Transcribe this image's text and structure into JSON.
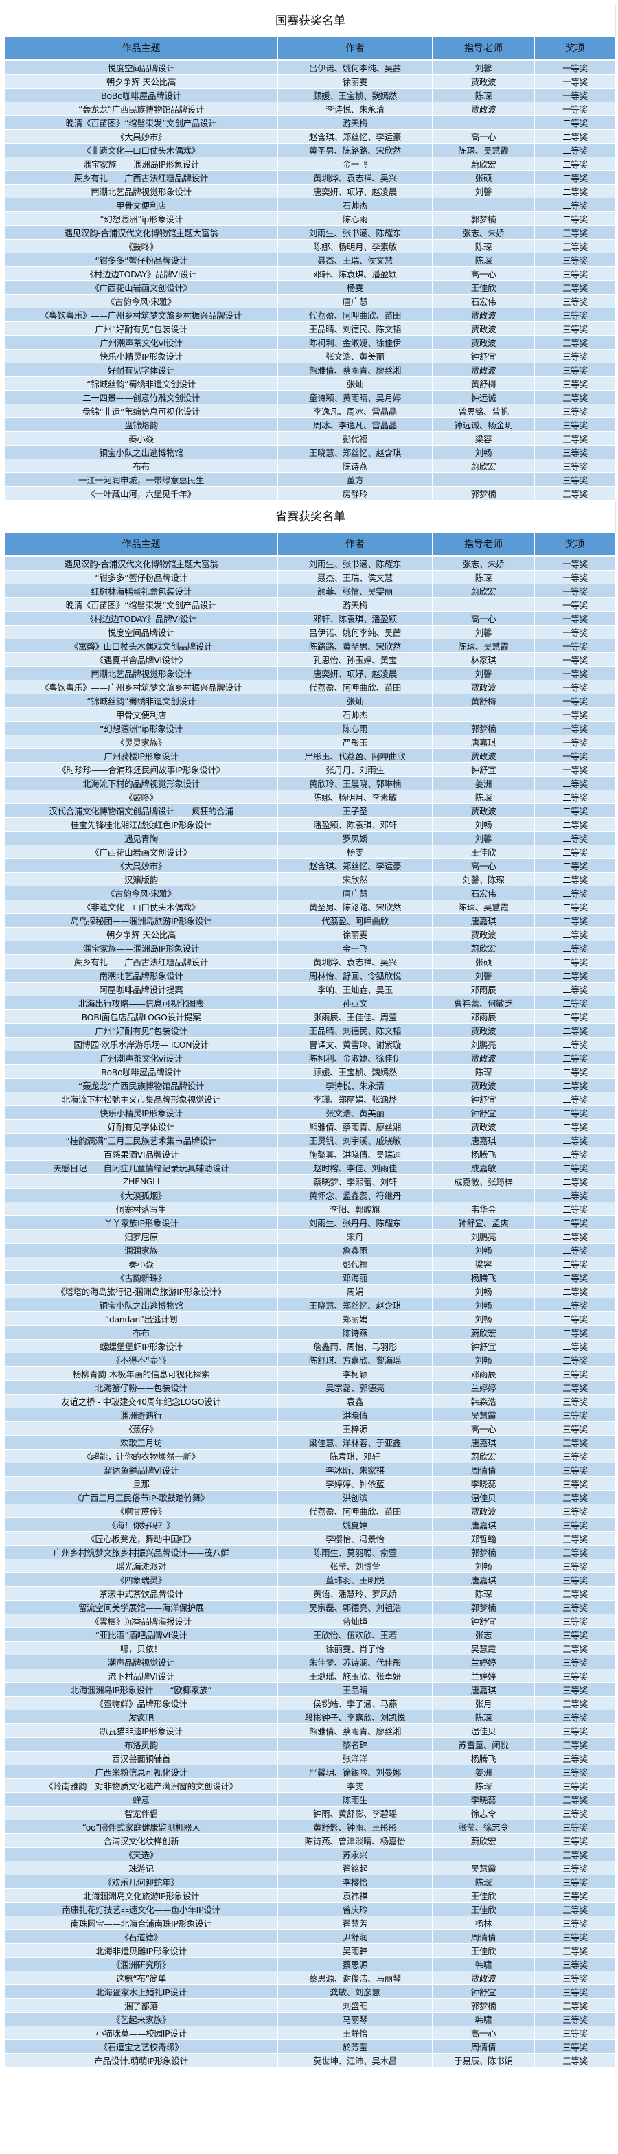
{
  "colors": {
    "header": "#5b9bd5",
    "row_dark": "#bdd7ee",
    "row_light": "#ddebf7"
  },
  "columns": [
    "作品主题",
    "作者",
    "指导老师",
    "奖项"
  ],
  "sections": [
    {
      "title": "国赛获奖名单",
      "rows": [
        [
          "悦度空间品牌设计",
          "吕伊诺、姚何李纯、吴茜",
          "刘馨",
          "一等奖"
        ],
        [
          "朝夕争辉 天公比高",
          "徐丽雯",
          "贾政波",
          "一等奖"
        ],
        [
          "BoBo咖啡屋品牌设计",
          "顾媛、王宝桢、魏嫣然",
          "陈琛",
          "一等奖"
        ],
        [
          "“轰龙龙”广西民族博物馆品牌设计",
          "李诗悦、朱永清",
          "贾政波",
          "一等奖"
        ],
        [
          "晚清《百苗图》“绾髻束发”文创产品设计",
          "游天梅",
          "",
          "二等奖"
        ],
        [
          "《大禺妙市》",
          "赵含琪、郑丝忆、李运豪",
          "高一心",
          "二等奖"
        ],
        [
          "《非遗文化—山口仗头木偶戏》",
          "黄圣男、陈路路、宋欣然",
          "陈琛、吴慧霞",
          "二等奖"
        ],
        [
          "涠宝家族——涠洲岛IP形象设计",
          "金一飞",
          "蔚欣宏",
          "二等奖"
        ],
        [
          "蔗乡有礼——广西古法红糖品牌设计",
          "黄圳烨、袁志祥、吴兴",
          "张硕",
          "二等奖"
        ],
        [
          "南潮北艺品牌视觉形象设计",
          "唐奕妍、项妤、赵凌晨",
          "刘馨",
          "二等奖"
        ],
        [
          "甲骨文便利店",
          "石帅杰",
          "",
          "二等奖"
        ],
        [
          "“幻想涠洲”ip形象设计",
          "陈心雨",
          "郭梦楠",
          "二等奖"
        ],
        [
          "遇见汉韵-合浦汉代文化博物馆主题大富翁",
          "刘雨生、张书涵、陈耀东",
          "张志、朱娇",
          "三等奖"
        ],
        [
          "《鼓咚》",
          "陈娜、杨明月、李素敏",
          "陈琛",
          "三等奖"
        ],
        [
          "“钳多多”蟹仔粉品牌设计",
          "聂杰、王瑞、侯文慧",
          "陈琛",
          "三等奖"
        ],
        [
          "《村边边TODAY》品牌VI设计",
          "邓轩、陈袁琪、潘盈颖",
          "高一心",
          "三等奖"
        ],
        [
          "《广西花山岩画文创设计》",
          "杨雯",
          "王佳欣",
          "三等奖"
        ],
        [
          "《古韵今风·宋雅》",
          "唐广慧",
          "石宏伟",
          "三等奖"
        ],
        [
          "《粤饮粤乐》——广州乡村筑梦文旅乡村振兴品牌设计",
          "代荔盈、阿呷曲欣、苗田",
          "贾政波",
          "三等奖"
        ],
        [
          "广州“好耐有见”包装设计",
          "王品晴、刘德民、陈文韬",
          "贾政波",
          "三等奖"
        ],
        [
          "广州潮声茶文化vi设计",
          "陈柯利、金淑婕、徐佳伊",
          "贾政波",
          "三等奖"
        ],
        [
          "快乐小精灵IP形象设计",
          "张文浩、黄美丽",
          "钟舒宜",
          "三等奖"
        ],
        [
          "好耐有见字体设计",
          "熊雅倩、蔡雨青、廖丝湘",
          "贾政波",
          "三等奖"
        ],
        [
          "“锦城丝韵”蜀绣非遗文创设计",
          "张灿",
          "黄舒梅",
          "三等奖"
        ],
        [
          "二十四景——创意竹雕文创设计",
          "童诗颖、黄雨晴、吴月婷",
          "钟远诚",
          "三等奖"
        ],
        [
          "盘锦“非遗”苇编信息可视化设计",
          "李逸凡、周冰、雷晶晶",
          "曾思铭、曾帆",
          "三等奖"
        ],
        [
          "盘锦烙韵",
          "周冰、李逸凡、雷晶晶",
          "钟远诚、杨金玥",
          "三等奖"
        ],
        [
          "秦小焱",
          "彭代福",
          "梁容",
          "三等奖"
        ],
        [
          "铜宝小队之出逃博物馆",
          "王晓慧、郑丝忆、赵含琪",
          "刘畅",
          "三等奖"
        ],
        [
          "布布",
          "陈诗燕",
          "蔚欣宏",
          "三等奖"
        ],
        [
          "一江一河润申城，一带绿意惠民生",
          "董方",
          "",
          "三等奖"
        ],
        [
          "《一叶藏山河，六堡见千年》",
          "房静玲",
          "郭梦楠",
          "三等奖"
        ]
      ]
    },
    {
      "title": "省赛获奖名单",
      "rows": [
        [
          "遇见汉韵-合浦汉代文化博物馆主题大富翁",
          "刘雨生、张书涵、陈耀东",
          "张志、朱娇",
          "一等奖"
        ],
        [
          "“钳多多”蟹仔粉品牌设计",
          "聂杰、王瑞、侯文慧",
          "陈琛",
          "一等奖"
        ],
        [
          "红树林海鸭蛋礼盒包装设计",
          "颜菲、张情、吴雯丽",
          "蔚欣宏",
          "一等奖"
        ],
        [
          "晚清《百苗图》“绾髻束发”文创产品设计",
          "游天梅",
          "",
          "一等奖"
        ],
        [
          "《村边边TODAY》品牌VI设计",
          "邓轩、陈袁琪、潘盈颖",
          "高一心",
          "一等奖"
        ],
        [
          "悦度空间品牌设计",
          "吕伊诺、姚何李纯、吴茜",
          "刘馨",
          "一等奖"
        ],
        [
          "《寓磬》山口杖头木偶戏文创品牌设计",
          "陈路路、黄圣男、宋欣然",
          "陈琛、吴慧霞",
          "一等奖"
        ],
        [
          "《遇夏书舍品牌VI设计》",
          "孔思怡、孙玉婷、黄宝",
          "林家琪",
          "一等奖"
        ],
        [
          "南潮北艺品牌视觉形象设计",
          "唐奕妍、项妤、赵凌晨",
          "刘馨",
          "一等奖"
        ],
        [
          "《粤饮粤乐》——广州乡村筑梦文旅乡村振兴品牌设计",
          "代荔盈、阿呷曲欣、苗田",
          "贾政波",
          "一等奖"
        ],
        [
          "“锦城丝韵”蜀绣非遗文创设计",
          "张灿",
          "黄舒梅",
          "一等奖"
        ],
        [
          "甲骨文便利店",
          "石帅杰",
          "",
          "一等奖"
        ],
        [
          "“幻想涠洲”ip形象设计",
          "陈心雨",
          "郭梦楠",
          "一等奖"
        ],
        [
          "《灵灵家族》",
          "严彤玉",
          "唐嘉琪",
          "一等奖"
        ],
        [
          "广州骑楼IP形象设计",
          "严彤玉、代荔盈、阿呷曲欣",
          "贾政波",
          "一等奖"
        ],
        [
          "《时珍珍——合浦珠还民间故事IP形象设计》",
          "张丹丹、刘雨生",
          "钟舒宜",
          "一等奖"
        ],
        [
          "北海流下村的品牌视觉形象设计",
          "黄欣玲、王晨晓、郭琳楠",
          "姜洲",
          "二等奖"
        ],
        [
          "《鼓咚》",
          "陈娜、杨明月、李素敏",
          "陈琛",
          "二等奖"
        ],
        [
          "汉代合浦文化博物馆文创品牌设计——疯狂的合浦",
          "王子圣",
          "贾政波",
          "二等奖"
        ],
        [
          "桂宝先锋桂北湘江战役红色IP形象设计",
          "潘盈颖、陈袁琪、邓轩",
          "刘畅",
          "二等奖"
        ],
        [
          "遇见青陶",
          "罗凤娇",
          "刘馨",
          "二等奖"
        ],
        [
          "《广西花山岩画文创设计》",
          "杨雯",
          "王佳欣",
          "二等奖"
        ],
        [
          "《大禺妙市》",
          "赵含琪、郑丝忆、李运豪",
          "高一心",
          "二等奖"
        ],
        [
          "汉濂版韵",
          "宋欣然",
          "刘馨、陈琛",
          "二等奖"
        ],
        [
          "《古韵今风·宋雅》",
          "唐广慧",
          "石宏伟",
          "二等奖"
        ],
        [
          "《非遗文化—山口仗头木偶戏》",
          "黄圣男、陈路路、宋欣然",
          "陈琛、吴慧霞",
          "二等奖"
        ],
        [
          "岛岛探秘团——涠洲岛旅游IP形象设计",
          "代荔盈、阿呷曲欣",
          "唐嘉琪",
          "二等奖"
        ],
        [
          "朝夕争辉 天公比高",
          "徐丽雯",
          "贾政波",
          "二等奖"
        ],
        [
          "涠宝家族——涠洲岛IP形象设计",
          "金一飞",
          "蔚欣宏",
          "二等奖"
        ],
        [
          "蔗乡有礼——广西古法红糖品牌设计",
          "黄圳烨、袁志祥、吴兴",
          "张硕",
          "二等奖"
        ],
        [
          "南潮北艺品牌形象设计",
          "周林怡、舒画、令狐欣悦",
          "刘馨",
          "二等奖"
        ],
        [
          "阿屋咖啡品牌设计提案",
          "李响、王灿垚、吴玉",
          "邓雨辰",
          "二等奖"
        ],
        [
          "北海出行攻略——信息可视化图表",
          "孙亚文",
          "曹祎蕾、何敏芝",
          "二等奖"
        ],
        [
          "BOBI面包店品牌LOGO设计提案",
          "张雨辰、王佳佳、周莹",
          "邓雨辰",
          "二等奖"
        ],
        [
          "广州“好耐有见”包装设计",
          "王品晴、刘德民、陈文韬",
          "贾政波",
          "二等奖"
        ],
        [
          "园博园·欢乐水岸游乐场— ICON设计",
          "曹译文、黄雪玲、谢紫璇",
          "刘鹏亮",
          "二等奖"
        ],
        [
          "广州潮声茶文化vi设计",
          "陈柯利、金淑婕、徐佳伊",
          "贾政波",
          "二等奖"
        ],
        [
          "BoBo咖啡屋品牌设计",
          "顾媛、王宝桢、魏嫣然",
          "陈琛",
          "二等奖"
        ],
        [
          "“轰龙龙”广西民族博物馆品牌设计",
          "李诗悦、朱永清",
          "贾政波",
          "二等奖"
        ],
        [
          "北海流下村松弛主义市集品牌形象视觉设计",
          "李珊、郑丽娟、张涵烨",
          "钟舒宜",
          "二等奖"
        ],
        [
          "快乐小精灵IP形象设计",
          "张文浩、黄美丽",
          "钟舒宜",
          "二等奖"
        ],
        [
          "好耐有见字体设计",
          "熊雅倩、蔡雨青、廖丝湘",
          "贾政波",
          "二等奖"
        ],
        [
          "“桂韵满满”三月三民族艺术集市品牌设计",
          "王灵钒、刘宇溪、戚晓敏",
          "唐嘉琪",
          "二等奖"
        ],
        [
          "百感果酒VI品牌设计",
          "施懿真、洪晓倩、吴瑞迪",
          "杨腾飞",
          "二等奖"
        ],
        [
          "天感日记——自闭症儿童情绪记录玩具辅助设计",
          "赵时榕、李佳、刘雨佳",
          "成嘉敏",
          "二等奖"
        ],
        [
          "ZHENGLI",
          "蔡晓梦、李熙蕾、刘轩",
          "成嘉敏、张筠梓",
          "二等奖"
        ],
        [
          "《大漠孤烟》",
          "黄怀念、孟鑫蕊、符继丹",
          "",
          "二等奖"
        ],
        [
          "侗寨村落写生",
          "李阳、郭峻旗",
          "韦华金",
          "二等奖"
        ],
        [
          "丫丫家族IP形象设计",
          "刘雨生、张丹丹、陈耀东",
          "钟舒宜、孟爽",
          "二等奖"
        ],
        [
          "汨罗屈原",
          "宋丹",
          "刘鹏亮",
          "二等奖"
        ],
        [
          "涠涠家族",
          "詹鑫雨",
          "刘畅",
          "二等奖"
        ],
        [
          "秦小焱",
          "彭代福",
          "梁容",
          "二等奖"
        ],
        [
          "《古韵新珠》",
          "邓海丽",
          "杨腾飞",
          "二等奖"
        ],
        [
          "《塔塔的海岛旅行记-涠洲岛旅游IP形象设计》",
          "周娟",
          "刘畅",
          "二等奖"
        ],
        [
          "铜宝小队之出逃博物馆",
          "王晓慧、郑丝忆、赵含琪",
          "刘畅",
          "二等奖"
        ],
        [
          "“dandan”出逃计划",
          "郑丽娟",
          "刘畅",
          "二等奖"
        ],
        [
          "布布",
          "陈诗燕",
          "蔚欣宏",
          "二等奖"
        ],
        [
          "螺螺堡堡虾IP形象设计",
          "詹鑫雨、周怡、马羽彤",
          "钟舒宜",
          "二等奖"
        ],
        [
          "《不得不“壶”》",
          "陈舒琪、方嘉欣、黎海瑶",
          "刘畅",
          "二等奖"
        ],
        [
          "杨柳青韵-木板年画的信息可视化探索",
          "李柯颖",
          "邓雨辰",
          "三等奖"
        ],
        [
          "北海蟹仔粉——包装设计",
          "吴宗磊、郭德亮",
          "兰婷婷",
          "三等奖"
        ],
        [
          "友谊之桥 - 中玻建交40周年纪念LOGO设计",
          "袁鑫",
          "韩森浩",
          "三等奖"
        ],
        [
          "涠洲奇遇行",
          "洪晓倩",
          "吴慧霞",
          "三等奖"
        ],
        [
          "《蕉仔》",
          "王梓源",
          "高一心",
          "三等奖"
        ],
        [
          "欢歌三月坊",
          "梁佳慧、洋林蓉、于亚鑫",
          "唐嘉琪",
          "三等奖"
        ],
        [
          "《超能，让你的衣物焕然一新》",
          "陈袁琪、邓轩",
          "蔚欣宏",
          "三等奖"
        ],
        [
          "溜达鱼鲜品牌VI设计",
          "李冰昕、朱家祺",
          "周倩倩",
          "三等奖"
        ],
        [
          "旦那",
          "李婷婷、钟依蓝",
          "李晓蕊",
          "三等奖"
        ],
        [
          "《广西三月三民俗节IP-歌鼓踏竹舞》",
          "洪创滨",
          "温佳贝",
          "三等奖"
        ],
        [
          "《啊甘蔗传》",
          "代荔盈、阿呷曲欣、苗田",
          "贾政波",
          "三等奖"
        ],
        [
          "《海！你好吗？》",
          "姚夏婷",
          "唐嘉琪",
          "三等奖"
        ],
        [
          "《匠心板凳龙，舞动中国红》",
          "李樱怡、冯景怡",
          "郑哲翰",
          "三等奖"
        ],
        [
          "广州乡村筑梦文旅乡村振兴品牌设计——茂八鲜",
          "陈雨生、莫羽聪、俞萱",
          "郭梦楠",
          "三等奖"
        ],
        [
          "瑶光海滩派对",
          "张莹、刘博萱",
          "刘畅",
          "三等奖"
        ],
        [
          "《四象瑞灵》",
          "董玮羽、王明悦",
          "唐嘉琪",
          "三等奖"
        ],
        [
          "茶漾中式茶饮品牌设计",
          "黄语、潘慧玲、罗凤娇",
          "陈琛",
          "三等奖"
        ],
        [
          "留流空间美学展馆——海洋保护展",
          "吴宗磊、郭德亮、刘祖浩",
          "郭梦楠",
          "三等奖"
        ],
        [
          "《雲檀》沉香品牌海报设计",
          "蒋灿瑄",
          "钟舒宜",
          "三等奖"
        ],
        [
          "“亚比酒”酒吧品牌VI设计",
          "王欣怡、伍欢欣、王若",
          "张志",
          "三等奖"
        ],
        [
          "嘿，贝侬！",
          "徐丽雯、肖子怡",
          "吴慧霞",
          "三等奖"
        ],
        [
          "潮声品牌视觉设计",
          "朱佳梦、苏诗涵、代佳彤",
          "兰婷婷",
          "三等奖"
        ],
        [
          "流下村品牌VI设计",
          "王璐瑶、施玉欣、张卓妍",
          "兰婷婷",
          "三等奖"
        ],
        [
          "北海涠洲岛IP形象设计——“欧椰家族”",
          "王品晴",
          "唐嘉琪",
          "三等奖"
        ],
        [
          "《疍嗨鲜》品牌形象设计",
          "侯锐皓、李子涵、马燕",
          "张月",
          "三等奖"
        ],
        [
          "发疯吧",
          "段彬钟子、李嘉欣、刘凯悦",
          "陈琛",
          "三等奖"
        ],
        [
          "趴瓦猫非遗IP形象设计",
          "熊雅倩、蔡雨青、廖丝湘",
          "温佳贝",
          "三等奖"
        ],
        [
          "布洛灵韵",
          "黎名玮",
          "苏雪童、闭悦",
          "三等奖"
        ],
        [
          "西汉兽面铜辅首",
          "张洋洋",
          "杨腾飞",
          "三等奖"
        ],
        [
          "广西米粉信息可视化设计",
          "严馨玥、徐银吟、刘曼娜",
          "姜洲",
          "三等奖"
        ],
        [
          "《岭南雅韵—对非物质文化遗产满洲窗的文创设计》",
          "李雯",
          "陈琛",
          "三等奖"
        ],
        [
          "蝉意",
          "陈雨生",
          "李晓蕊",
          "三等奖"
        ],
        [
          "智宠伴侣",
          "钟雨、黄舒影、李碧瑶",
          "徐志令",
          "三等奖"
        ],
        [
          "“oo”陪伴式家庭健康监测机器人",
          "黄舒影、钟雨、王彤彤",
          "张莹、徐志令",
          "三等奖"
        ],
        [
          "合浦汉文化纹样创新",
          "陈诗燕、曾津淡晴、杨嘉怡",
          "蔚欣宏",
          "三等奖"
        ],
        [
          "《天选》",
          "苏永兴",
          "",
          "三等奖"
        ],
        [
          "珠游记",
          "翟铭起",
          "吴慧霞",
          "三等奖"
        ],
        [
          "《欢乐几何迎蛇年》",
          "李樱怡",
          "陈琛",
          "三等奖"
        ],
        [
          "北海涠洲岛文化旅游IP形象设计",
          "袁祎祺",
          "王佳欣",
          "三等奖"
        ],
        [
          "南康扎花灯技艺非遗文化——鱼小年IP设计",
          "曾庆玲",
          "王佳欣",
          "三等奖"
        ],
        [
          "南珠圆宝——北海合浦南珠IP形象设计",
          "翟慧芳",
          "杨林",
          "三等奖"
        ],
        [
          "《石道德》",
          "尹舒润",
          "周倩倩",
          "三等奖"
        ],
        [
          "北海非遗贝雕IP形象设计",
          "吴雨韩",
          "王佳欣",
          "三等奖"
        ],
        [
          "《涠洲研究所》",
          "蔡思源",
          "韩啸",
          "三等奖"
        ],
        [
          "这鲸“布”简单",
          "蔡思源、谢俊洁、马丽琴",
          "贾政波",
          "三等奖"
        ],
        [
          "北海疍家水上婚礼IP设计",
          "龚敏、刘彦慧",
          "钟舒宜",
          "三等奖"
        ],
        [
          "涠了部落",
          "刘盛旺",
          "郭梦楠",
          "三等奖"
        ],
        [
          "《艺起来家族》",
          "马丽琴",
          "韩啸",
          "三等奖"
        ],
        [
          "小猫咪莫——校园IP设计",
          "王静怡",
          "高一心",
          "三等奖"
        ],
        [
          "《石逗宝之艺校奇缘》",
          "於芳莹",
          "周倩倩",
          "三等奖"
        ],
        [
          "产品设计.萌萌IP形象设计",
          "莫世坤、江沛、吴木昌",
          "于易辰、陈书娟",
          "三等奖"
        ]
      ]
    }
  ]
}
